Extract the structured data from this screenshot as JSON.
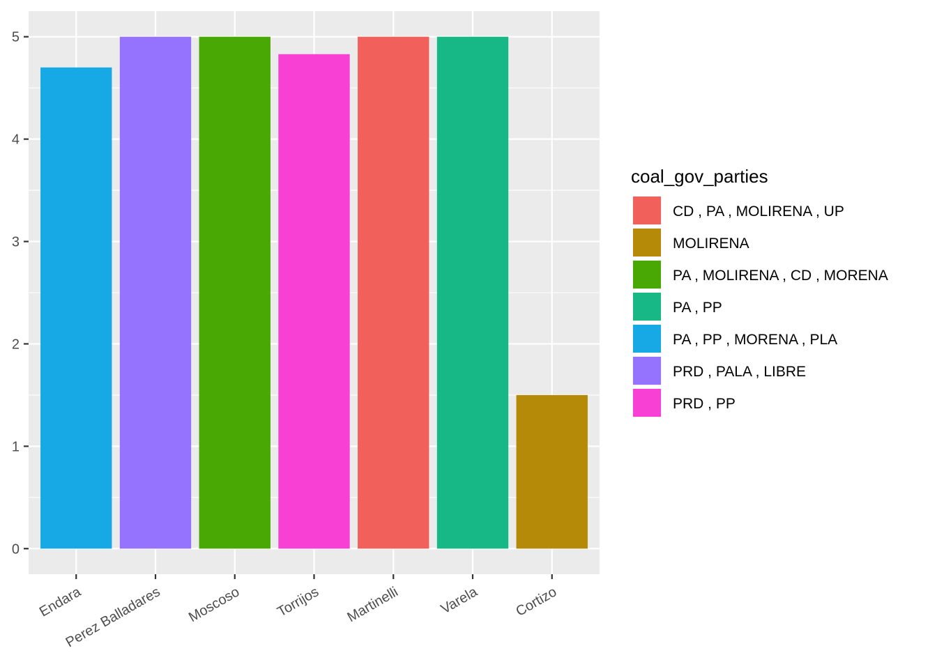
{
  "chart_data": {
    "type": "bar",
    "categories": [
      "Endara",
      "Perez Balladares",
      "Moscoso",
      "Torrijos",
      "Martinelli",
      "Varela",
      "Cortizo"
    ],
    "values": [
      4.7,
      5.0,
      5.0,
      4.83,
      5.0,
      5.0,
      1.5
    ],
    "fill_groups": [
      "PA , PP , MORENA , PLA",
      "PRD , PALA , LIBRE",
      "PA , MOLIRENA , CD , MORENA",
      "PRD , PP",
      "CD , PA , MOLIRENA , UP",
      "PA , PP",
      "MOLIRENA"
    ],
    "title": "",
    "xlabel": "",
    "ylabel": "",
    "ylim": [
      -0.25,
      5.25
    ],
    "yticks": [
      0,
      1,
      2,
      3,
      4,
      5
    ],
    "grid": true,
    "legend": {
      "title": "coal_gov_parties",
      "position": "right",
      "entries": [
        {
          "label": "CD , PA , MOLIRENA , UP",
          "color": "#F8766D"
        },
        {
          "label": "MOLIRENA",
          "color": "#B79F00"
        },
        {
          "label": "PA , MOLIRENA , CD , MORENA",
          "color": "#00BA38"
        },
        {
          "label": "PA , PP",
          "color": "#00BFC4"
        },
        {
          "label": "PA , PP , MORENA , PLA",
          "color": "#619CFF"
        },
        {
          "label": "PRD , PALA , LIBRE",
          "color": "#A58AFF"
        },
        {
          "label": "PRD , PP",
          "color": "#F564E3"
        }
      ]
    },
    "colors": {
      "CD , PA , MOLIRENA , UP": "#F2605C",
      "MOLIRENA": "#B48A08",
      "PA , MOLIRENA , CD , MORENA": "#49A803",
      "PA , PP": "#17B886",
      "PA , PP , MORENA , PLA": "#17A8E6",
      "PRD , PALA , LIBRE": "#9673FE",
      "PRD , PP": "#F840D4"
    }
  }
}
